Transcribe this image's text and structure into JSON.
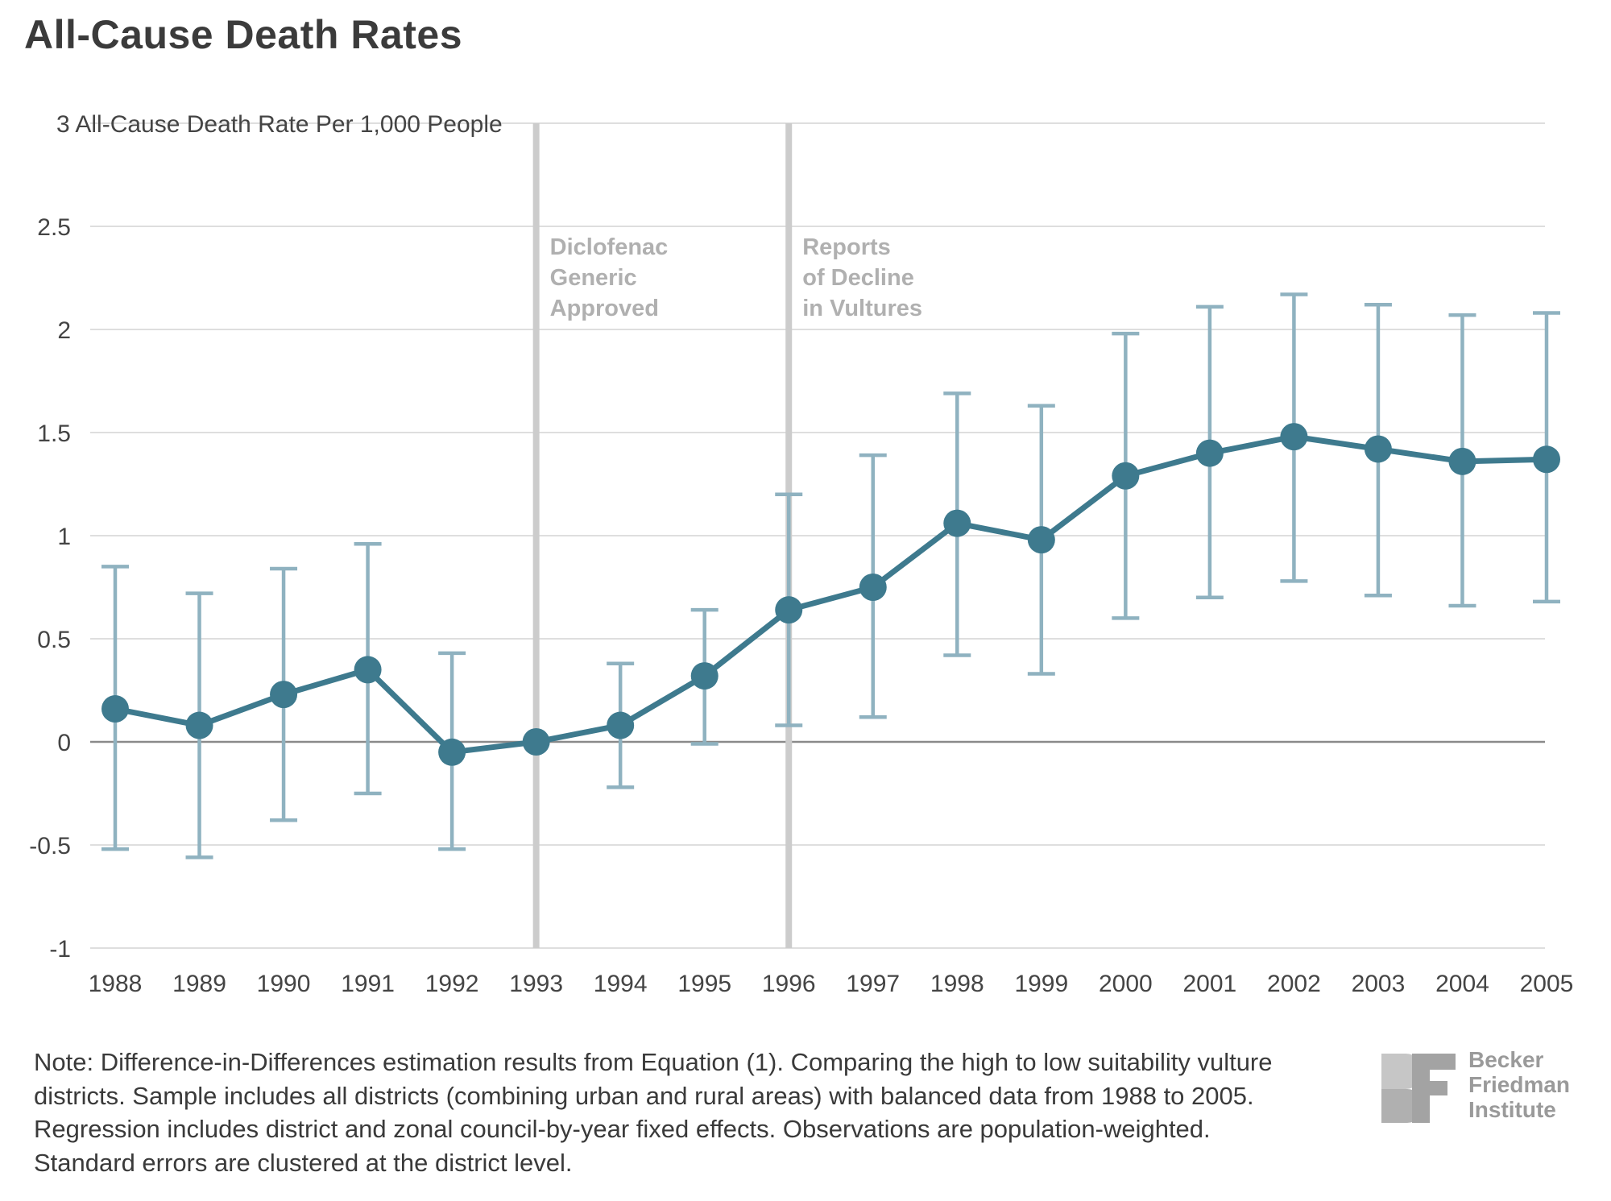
{
  "page_title": "All-Cause Death Rates",
  "chart_data": {
    "type": "line",
    "title": "All-Cause Death Rates",
    "ylabel": "All-Cause Death Rate Per 1,000 People",
    "xlabel": "",
    "ylim": [
      -1,
      3
    ],
    "yticks": [
      "-1",
      "-0.5",
      "0",
      "0.5",
      "1",
      "1.5",
      "2",
      "2.5",
      "3"
    ],
    "yticks_values": [
      -1,
      -0.5,
      0,
      0.5,
      1,
      1.5,
      2,
      2.5,
      3
    ],
    "categories": [
      "1988",
      "1989",
      "1990",
      "1991",
      "1992",
      "1993",
      "1994",
      "1995",
      "1996",
      "1997",
      "1998",
      "1999",
      "2000",
      "2001",
      "2002",
      "2003",
      "2004",
      "2005"
    ],
    "series": [
      {
        "name": "Difference-in-Differences estimate",
        "values": [
          0.16,
          0.08,
          0.23,
          0.35,
          -0.05,
          0.0,
          0.08,
          0.32,
          0.64,
          0.75,
          1.06,
          0.98,
          1.29,
          1.4,
          1.48,
          1.42,
          1.36,
          1.37
        ],
        "ci_low": [
          -0.52,
          -0.56,
          -0.38,
          -0.25,
          -0.52,
          null,
          -0.22,
          -0.01,
          0.08,
          0.12,
          0.42,
          0.33,
          0.6,
          0.7,
          0.78,
          0.71,
          0.66,
          0.68
        ],
        "ci_high": [
          0.85,
          0.72,
          0.84,
          0.96,
          0.43,
          null,
          0.38,
          0.64,
          1.2,
          1.39,
          1.69,
          1.63,
          1.98,
          2.11,
          2.17,
          2.12,
          2.07,
          2.08
        ]
      }
    ],
    "annotations": [
      {
        "year": "1993",
        "lines": [
          "Diclofenac",
          "Generic",
          "Approved"
        ]
      },
      {
        "year": "1996",
        "lines": [
          "Reports",
          "of Decline",
          "in Vultures"
        ]
      }
    ],
    "grid": true,
    "colors": {
      "line": "#3e7a8e",
      "error_bar": "#8fb2c0",
      "grid": "#d4d4d4",
      "zero_line": "#8a8a8a",
      "event_line": "#cccccc",
      "annotation": "#b0b0b0"
    }
  },
  "note": "Note: Difference-in-Differences estimation results from Equation (1). Comparing the high to low suitability vulture districts. Sample includes all districts (combining urban and rural areas) with balanced data from 1988 to 2005. Regression includes district and zonal council-by-year fixed effects. Observations are population-weighted. Standard errors are clustered at the district level.",
  "logo": {
    "line1": "Becker",
    "line2": "Friedman",
    "line3": "Institute",
    "mark_letters": "BF"
  }
}
